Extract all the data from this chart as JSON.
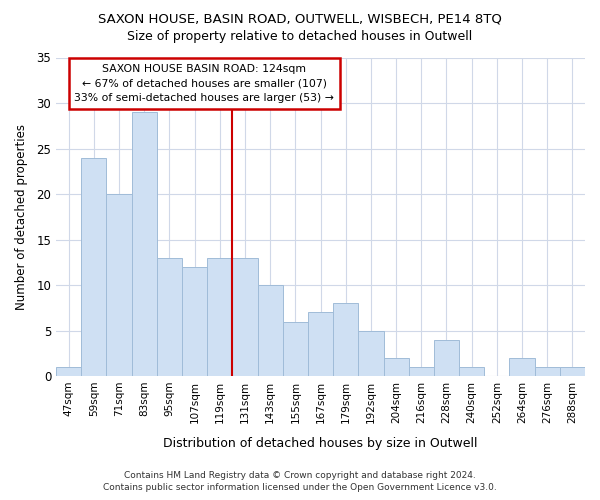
{
  "title1": "SAXON HOUSE, BASIN ROAD, OUTWELL, WISBECH, PE14 8TQ",
  "title2": "Size of property relative to detached houses in Outwell",
  "xlabel": "Distribution of detached houses by size in Outwell",
  "ylabel": "Number of detached properties",
  "categories": [
    "47sqm",
    "59sqm",
    "71sqm",
    "83sqm",
    "95sqm",
    "107sqm",
    "119sqm",
    "131sqm",
    "143sqm",
    "155sqm",
    "167sqm",
    "179sqm",
    "192sqm",
    "204sqm",
    "216sqm",
    "228sqm",
    "240sqm",
    "252sqm",
    "264sqm",
    "276sqm",
    "288sqm"
  ],
  "values": [
    1,
    24,
    20,
    29,
    13,
    12,
    13,
    13,
    10,
    6,
    7,
    8,
    5,
    2,
    1,
    4,
    1,
    0,
    2,
    1,
    1
  ],
  "bar_color": "#cfe0f3",
  "bar_edge_color": "#a0bcd8",
  "red_line_index": 7,
  "annotation_line1": "SAXON HOUSE BASIN ROAD: 124sqm",
  "annotation_line2": "← 67% of detached houses are smaller (107)",
  "annotation_line3": "33% of semi-detached houses are larger (53) →",
  "annotation_box_color": "#ffffff",
  "annotation_box_edge": "#cc0000",
  "footer1": "Contains HM Land Registry data © Crown copyright and database right 2024.",
  "footer2": "Contains public sector information licensed under the Open Government Licence v3.0.",
  "ylim": [
    0,
    35
  ],
  "yticks": [
    0,
    5,
    10,
    15,
    20,
    25,
    30,
    35
  ],
  "background_color": "#ffffff",
  "grid_color": "#d0d8e8"
}
